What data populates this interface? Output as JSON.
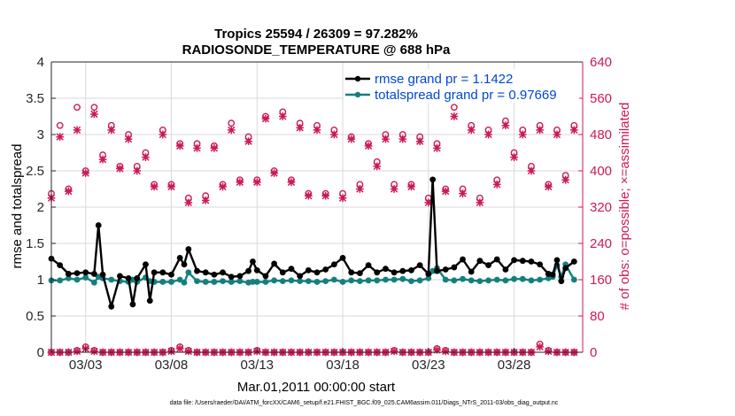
{
  "chart_data": {
    "type": "line",
    "title": "Tropics 25594 / 26309 = 97.282%",
    "subtitle": "RADIOSONDE_TEMPERATURE @ 688 hPa",
    "xlabel": "Mar.01,2011 00:00:00 start",
    "ylabel_left": "rmse and totalspread",
    "ylabel_right": "# of obs: o=possible; ×=assimilated",
    "footer": "data file: /Users/raeder/DAI/ATM_forcXX/CAM6_setup/f.e21.FHIST_BGC.f09_025.CAM6assim.011/Diags_NTrS_2011-03/obs_diag_output.nc",
    "xlim": [
      1.0,
      32.0
    ],
    "ylim_left": [
      0,
      4
    ],
    "ylim_right": [
      0,
      640
    ],
    "x_ticks": [
      3,
      8,
      13,
      18,
      23,
      28
    ],
    "x_tick_labels": [
      "03/03",
      "03/08",
      "03/13",
      "03/18",
      "03/23",
      "03/28"
    ],
    "y_left_ticks": [
      "0",
      "0.5",
      "1",
      "1.5",
      "2",
      "2.5",
      "3",
      "3.5",
      "4"
    ],
    "y_right_ticks": [
      "0",
      "80",
      "160",
      "240",
      "320",
      "400",
      "480",
      "560",
      "640"
    ],
    "legend_position": "top-right",
    "colors": {
      "rmse": "#000000",
      "spread": "#138080",
      "obs": "#cc1a52",
      "legend_text": "#0047d6"
    },
    "series": [
      {
        "name": "rmse grand pr = 1.1422",
        "color": "#000000",
        "axis": "left",
        "x": [
          1.0,
          1.5,
          2.0,
          2.5,
          3.0,
          3.5,
          3.75,
          4.0,
          4.5,
          5.0,
          5.5,
          5.75,
          6.0,
          6.5,
          6.75,
          7.0,
          7.5,
          8.0,
          8.5,
          8.75,
          9.0,
          9.5,
          10.0,
          10.5,
          11.0,
          11.5,
          12.0,
          12.5,
          12.75,
          13.0,
          13.5,
          14.0,
          14.5,
          15.0,
          15.5,
          16.0,
          16.5,
          17.0,
          17.5,
          18.0,
          18.5,
          19.0,
          19.5,
          20.0,
          20.5,
          21.0,
          21.5,
          22.0,
          22.5,
          23.0,
          23.25,
          23.5,
          24.0,
          24.5,
          25.0,
          25.5,
          26.0,
          26.5,
          27.0,
          27.5,
          28.0,
          28.5,
          29.0,
          29.5,
          30.0,
          30.25,
          30.5,
          30.75,
          31.0,
          31.5
        ],
        "values": [
          1.29,
          1.2,
          1.08,
          1.09,
          1.1,
          1.08,
          1.75,
          1.07,
          0.63,
          1.05,
          1.02,
          0.66,
          1.02,
          1.21,
          0.71,
          1.1,
          1.1,
          1.07,
          1.3,
          1.21,
          1.42,
          1.12,
          1.1,
          1.07,
          1.1,
          1.04,
          1.05,
          1.12,
          1.25,
          1.13,
          1.05,
          1.22,
          1.1,
          1.15,
          1.05,
          1.13,
          1.1,
          1.14,
          1.21,
          1.3,
          1.1,
          1.09,
          1.2,
          1.1,
          1.15,
          1.1,
          1.12,
          1.13,
          1.2,
          1.08,
          2.38,
          1.12,
          1.14,
          1.17,
          1.28,
          1.11,
          1.26,
          1.2,
          1.28,
          1.14,
          1.27,
          1.26,
          1.25,
          1.21,
          1.08,
          1.07,
          1.27,
          0.98,
          1.16,
          1.25
        ]
      },
      {
        "name": "totalspread grand pr = 0.97669",
        "color": "#138080",
        "axis": "left",
        "x": [
          1.0,
          1.5,
          2.0,
          2.5,
          3.0,
          3.5,
          3.75,
          4.0,
          4.5,
          5.0,
          5.5,
          5.75,
          6.0,
          6.5,
          6.75,
          7.0,
          7.5,
          8.0,
          8.5,
          8.75,
          9.0,
          9.5,
          10.0,
          10.5,
          11.0,
          11.5,
          12.0,
          12.5,
          12.75,
          13.0,
          13.5,
          14.0,
          14.5,
          15.0,
          15.5,
          16.0,
          16.5,
          17.0,
          17.5,
          18.0,
          18.5,
          19.0,
          19.5,
          20.0,
          20.5,
          21.0,
          21.5,
          22.0,
          22.5,
          23.0,
          23.25,
          23.5,
          24.0,
          24.5,
          25.0,
          25.5,
          26.0,
          26.5,
          27.0,
          27.5,
          28.0,
          28.5,
          29.0,
          29.5,
          30.0,
          30.25,
          30.5,
          30.75,
          31.0,
          31.5
        ],
        "values": [
          0.99,
          0.99,
          1.02,
          1.0,
          1.03,
          0.96,
          1.04,
          1.02,
          1.0,
          0.98,
          0.97,
          1.0,
          0.97,
          1.03,
          0.98,
          0.97,
          0.97,
          0.97,
          1.0,
          0.96,
          1.1,
          0.98,
          0.97,
          0.97,
          0.98,
          0.97,
          0.98,
          0.96,
          0.97,
          0.97,
          0.97,
          0.99,
          0.98,
          0.99,
          0.98,
          0.98,
          0.97,
          0.98,
          1.0,
          0.97,
          0.99,
          0.98,
          0.99,
          0.99,
          1.0,
          1.0,
          1.01,
          0.98,
          0.99,
          1.02,
          1.12,
          1.16,
          1.0,
          0.99,
          1.01,
          0.99,
          0.98,
          0.99,
          1.0,
          0.99,
          1.01,
          1.01,
          0.99,
          1.0,
          1.02,
          1.04,
          1.2,
          1.04,
          1.21,
          1.0
        ]
      },
      {
        "name": "obs possible",
        "color": "#cc1a52",
        "axis": "right",
        "marker": "o",
        "x": [
          1.0,
          1.5,
          2.0,
          2.5,
          3.0,
          3.5,
          4.0,
          4.5,
          5.0,
          5.5,
          6.0,
          6.5,
          7.0,
          7.5,
          8.0,
          8.5,
          9.0,
          9.5,
          10.0,
          10.5,
          11.0,
          11.5,
          12.0,
          12.5,
          13.0,
          13.5,
          14.0,
          14.5,
          15.0,
          15.5,
          16.0,
          16.5,
          17.0,
          17.5,
          18.0,
          18.5,
          19.0,
          19.5,
          20.0,
          20.5,
          21.0,
          21.5,
          22.0,
          22.5,
          23.0,
          23.5,
          24.0,
          24.5,
          25.0,
          25.5,
          26.0,
          26.5,
          27.0,
          27.5,
          28.0,
          28.5,
          29.0,
          29.5,
          30.0,
          30.5,
          31.0,
          31.5
        ],
        "values": [
          350,
          500,
          360,
          540,
          400,
          540,
          435,
          500,
          410,
          480,
          410,
          440,
          370,
          490,
          370,
          460,
          340,
          460,
          345,
          455,
          370,
          505,
          380,
          475,
          380,
          520,
          400,
          530,
          380,
          505,
          350,
          500,
          350,
          490,
          350,
          475,
          370,
          460,
          420,
          480,
          370,
          480,
          370,
          475,
          340,
          460,
          360,
          540,
          360,
          500,
          340,
          490,
          380,
          510,
          440,
          490,
          410,
          500,
          370,
          490,
          390,
          500
        ]
      },
      {
        "name": "obs assimilated",
        "color": "#cc1a52",
        "axis": "right",
        "marker": "x",
        "x": [
          1.0,
          1.5,
          2.0,
          2.5,
          3.0,
          3.5,
          4.0,
          4.5,
          5.0,
          5.5,
          6.0,
          6.5,
          7.0,
          7.5,
          8.0,
          8.5,
          9.0,
          9.5,
          10.0,
          10.5,
          11.0,
          11.5,
          12.0,
          12.5,
          13.0,
          13.5,
          14.0,
          14.5,
          15.0,
          15.5,
          16.0,
          16.5,
          17.0,
          17.5,
          18.0,
          18.5,
          19.0,
          19.5,
          20.0,
          20.5,
          21.0,
          21.5,
          22.0,
          22.5,
          23.0,
          23.5,
          24.0,
          24.5,
          25.0,
          25.5,
          26.0,
          26.5,
          27.0,
          27.5,
          28.0,
          28.5,
          29.0,
          29.5,
          30.0,
          30.5,
          31.0,
          31.5
        ],
        "values": [
          340,
          475,
          355,
          490,
          395,
          525,
          425,
          490,
          405,
          470,
          400,
          430,
          365,
          480,
          365,
          455,
          330,
          450,
          335,
          450,
          365,
          490,
          375,
          465,
          375,
          515,
          395,
          520,
          375,
          495,
          345,
          490,
          345,
          480,
          340,
          470,
          360,
          455,
          410,
          470,
          360,
          470,
          365,
          465,
          330,
          450,
          355,
          520,
          350,
          490,
          330,
          480,
          370,
          500,
          430,
          480,
          400,
          490,
          365,
          480,
          380,
          490
        ]
      },
      {
        "name": "obs possible low",
        "color": "#cc1a52",
        "axis": "right",
        "marker": "o",
        "x": [
          1.0,
          1.5,
          2.0,
          2.5,
          3.0,
          3.5,
          4.0,
          4.5,
          5.0,
          5.5,
          6.0,
          6.5,
          7.0,
          7.5,
          8.0,
          8.5,
          9.0,
          9.5,
          10.0,
          10.5,
          11.0,
          11.5,
          12.0,
          12.5,
          13.0,
          13.5,
          14.0,
          14.5,
          15.0,
          15.5,
          16.0,
          16.5,
          17.0,
          17.5,
          18.0,
          18.5,
          19.0,
          19.5,
          20.0,
          20.5,
          21.0,
          21.5,
          22.0,
          22.5,
          23.0,
          23.5,
          24.0,
          24.5,
          25.0,
          25.5,
          26.0,
          26.5,
          27.0,
          27.5,
          28.0,
          28.5,
          29.0,
          29.5,
          30.0,
          30.5,
          31.0,
          31.5
        ],
        "values": [
          0,
          0,
          0,
          4,
          12,
          4,
          0,
          0,
          0,
          0,
          0,
          0,
          0,
          0,
          4,
          12,
          4,
          0,
          0,
          0,
          0,
          0,
          0,
          0,
          4,
          0,
          0,
          0,
          0,
          0,
          0,
          0,
          0,
          0,
          0,
          0,
          0,
          0,
          0,
          0,
          4,
          0,
          0,
          0,
          0,
          8,
          4,
          0,
          0,
          0,
          0,
          0,
          0,
          0,
          0,
          0,
          0,
          18,
          4,
          0,
          0,
          0
        ]
      },
      {
        "name": "obs assimilated low",
        "color": "#cc1a52",
        "axis": "right",
        "marker": "x",
        "x": [
          1.0,
          1.5,
          2.0,
          2.5,
          3.0,
          3.5,
          4.0,
          4.5,
          5.0,
          5.5,
          6.0,
          6.5,
          7.0,
          7.5,
          8.0,
          8.5,
          9.0,
          9.5,
          10.0,
          10.5,
          11.0,
          11.5,
          12.0,
          12.5,
          13.0,
          13.5,
          14.0,
          14.5,
          15.0,
          15.5,
          16.0,
          16.5,
          17.0,
          17.5,
          18.0,
          18.5,
          19.0,
          19.5,
          20.0,
          20.5,
          21.0,
          21.5,
          22.0,
          22.5,
          23.0,
          23.5,
          24.0,
          24.5,
          25.0,
          25.5,
          26.0,
          26.5,
          27.0,
          27.5,
          28.0,
          28.5,
          29.0,
          29.5,
          30.0,
          30.5,
          31.0,
          31.5
        ],
        "values": [
          0,
          0,
          0,
          2,
          8,
          2,
          0,
          0,
          0,
          0,
          0,
          0,
          0,
          0,
          2,
          8,
          2,
          0,
          0,
          0,
          0,
          0,
          0,
          0,
          2,
          0,
          0,
          0,
          0,
          0,
          0,
          0,
          0,
          0,
          0,
          0,
          0,
          0,
          0,
          0,
          2,
          0,
          0,
          0,
          0,
          5,
          2,
          0,
          0,
          0,
          0,
          0,
          0,
          0,
          0,
          0,
          0,
          12,
          2,
          0,
          0,
          0
        ]
      }
    ]
  }
}
